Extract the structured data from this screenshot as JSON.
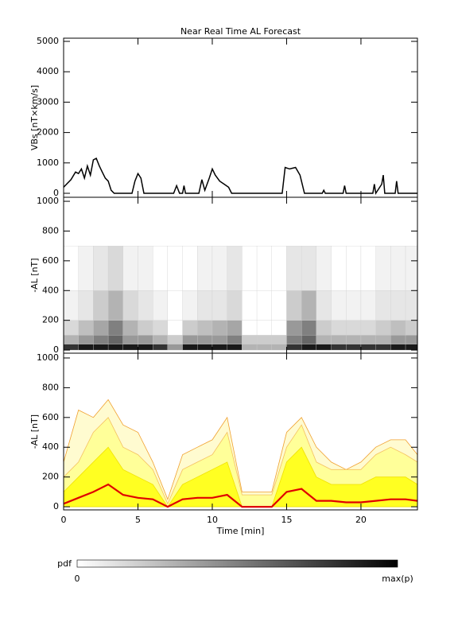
{
  "chart_data": [
    {
      "type": "line",
      "title": "Near Real Time AL Forecast",
      "ylabel": "VBs [nT×km/s]",
      "color": "#000000",
      "x": [
        0,
        0.2,
        0.5,
        0.8,
        1.0,
        1.2,
        1.4,
        1.6,
        1.8,
        2.0,
        2.2,
        2.4,
        2.6,
        2.8,
        3.0,
        3.2,
        3.4,
        4.6,
        4.8,
        5.0,
        5.2,
        5.4,
        7.4,
        7.6,
        7.8,
        8.0,
        8.1,
        8.2,
        9.1,
        9.3,
        9.5,
        9.8,
        10.0,
        10.2,
        10.5,
        10.8,
        11.1,
        11.3,
        14.7,
        14.9,
        15.2,
        15.6,
        15.9,
        16.2,
        17.4,
        17.5,
        17.6,
        18.8,
        18.9,
        19.0,
        20.8,
        20.9,
        21.0,
        21.4,
        21.5,
        21.6,
        22.3,
        22.4,
        22.5,
        23.8
      ],
      "values": [
        200,
        300,
        450,
        700,
        650,
        800,
        500,
        900,
        600,
        1100,
        1150,
        900,
        700,
        500,
        400,
        100,
        0,
        0,
        400,
        650,
        500,
        0,
        0,
        250,
        0,
        0,
        250,
        0,
        0,
        450,
        100,
        500,
        800,
        600,
        400,
        300,
        200,
        0,
        0,
        850,
        800,
        850,
        600,
        0,
        0,
        100,
        0,
        0,
        250,
        0,
        0,
        300,
        0,
        300,
        600,
        0,
        0,
        400,
        0,
        0
      ],
      "xlim": [
        0,
        23.8
      ],
      "xticks": [
        0,
        5,
        10,
        15,
        20
      ],
      "ylim": [
        -131,
        5105
      ],
      "yticks": [
        0,
        1000,
        2000,
        3000,
        4000,
        5000
      ]
    },
    {
      "type": "heatmap",
      "ylabel": "-AL [nT]",
      "bins_x": [
        0,
        1,
        2,
        3,
        4,
        5,
        6,
        7,
        8,
        9,
        10,
        11,
        12,
        13,
        14,
        15,
        16,
        17,
        18,
        19,
        20,
        21,
        22,
        23,
        23.8
      ],
      "bins_y": [
        0,
        40,
        100,
        200,
        400,
        700
      ],
      "z": [
        [
          0.8,
          0.9,
          0.9,
          0.9,
          0.9,
          0.9,
          0.8,
          0.4,
          0.9,
          0.9,
          0.9,
          0.9,
          0.3,
          0.3,
          0.3,
          0.8,
          0.9,
          0.9,
          0.8,
          0.8,
          0.8,
          0.8,
          0.9,
          0.9
        ],
        [
          0.3,
          0.4,
          0.5,
          0.6,
          0.4,
          0.4,
          0.3,
          0.2,
          0.4,
          0.4,
          0.4,
          0.5,
          0.2,
          0.2,
          0.2,
          0.5,
          0.6,
          0.3,
          0.3,
          0.3,
          0.3,
          0.3,
          0.4,
          0.4
        ],
        [
          0.15,
          0.25,
          0.35,
          0.5,
          0.3,
          0.2,
          0.15,
          0,
          0.2,
          0.25,
          0.3,
          0.35,
          0,
          0,
          0,
          0.4,
          0.5,
          0.2,
          0.15,
          0.15,
          0.15,
          0.2,
          0.25,
          0.2
        ],
        [
          0.05,
          0.1,
          0.2,
          0.3,
          0.15,
          0.1,
          0.05,
          0,
          0.05,
          0.1,
          0.1,
          0.15,
          0,
          0,
          0,
          0.2,
          0.3,
          0.1,
          0.05,
          0.05,
          0.05,
          0.1,
          0.1,
          0.1
        ],
        [
          0,
          0.05,
          0.1,
          0.15,
          0.05,
          0.05,
          0,
          0,
          0,
          0.05,
          0.05,
          0.1,
          0,
          0,
          0,
          0.1,
          0.1,
          0.05,
          0,
          0,
          0,
          0.05,
          0.05,
          0.05
        ]
      ],
      "xlim": [
        0,
        23.8
      ],
      "xticks": [
        0,
        5,
        10,
        15,
        20
      ],
      "ylim": [
        -21,
        1027
      ],
      "yticks": [
        0,
        200,
        400,
        600,
        800,
        1000
      ],
      "colorbar": {
        "label": "pdf",
        "min_label": "0",
        "max_label": "max(p)"
      }
    },
    {
      "type": "band",
      "ylabel": "-AL [nT]",
      "xlabel": "Time [min]",
      "x": [
        0,
        1,
        2,
        3,
        4,
        5,
        6,
        7,
        8,
        9,
        10,
        11,
        12,
        13,
        14,
        15,
        16,
        17,
        18,
        19,
        20,
        21,
        22,
        23,
        23.8
      ],
      "series": [
        {
          "kind": "area",
          "color": "#f0a030",
          "fill": "#fffbd0",
          "values": [
            300,
            650,
            600,
            720,
            550,
            500,
            300,
            50,
            350,
            400,
            450,
            600,
            100,
            100,
            100,
            500,
            600,
            400,
            300,
            250,
            300,
            400,
            450,
            450,
            350
          ]
        },
        {
          "kind": "area",
          "color": "#f5c060",
          "fill": "#ffff99",
          "values": [
            200,
            300,
            500,
            600,
            400,
            350,
            250,
            20,
            250,
            300,
            350,
            500,
            80,
            80,
            80,
            400,
            550,
            300,
            250,
            250,
            250,
            350,
            400,
            350,
            300
          ]
        },
        {
          "kind": "area",
          "color": "#f0e000",
          "fill": "#ffff22",
          "values": [
            100,
            200,
            300,
            400,
            250,
            200,
            150,
            0,
            150,
            200,
            250,
            300,
            0,
            0,
            0,
            300,
            400,
            200,
            150,
            150,
            150,
            200,
            200,
            200,
            150
          ]
        },
        {
          "kind": "line",
          "color": "#e00000",
          "values": [
            20,
            60,
            100,
            150,
            80,
            60,
            50,
            0,
            50,
            60,
            60,
            80,
            0,
            0,
            0,
            100,
            120,
            40,
            40,
            30,
            30,
            40,
            50,
            50,
            40
          ]
        }
      ],
      "xlim": [
        0,
        23.8
      ],
      "xticks": [
        0,
        5,
        10,
        15,
        20
      ],
      "ylim": [
        -21,
        1032
      ],
      "yticks": [
        0,
        200,
        400,
        600,
        800,
        1000
      ]
    }
  ]
}
